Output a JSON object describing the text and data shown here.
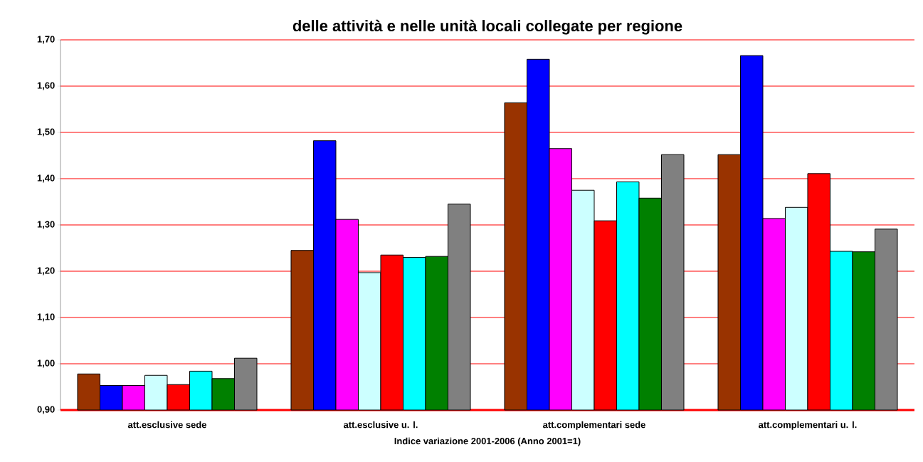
{
  "chart_data": {
    "type": "bar",
    "title": "delle attività e nelle unità locali collegate per regione",
    "xlabel": "Indice variazione 2001-2006 (Anno 2001=1)",
    "categories": [
      "att.esclusive sede",
      "att.esclusive u. l.",
      "att.complementari sede",
      "att.complementari u. l."
    ],
    "series": [
      {
        "color": "#993300",
        "values": [
          0.978,
          1.245,
          1.564,
          1.452
        ]
      },
      {
        "color": "#0000ff",
        "values": [
          0.953,
          1.482,
          1.658,
          1.666
        ]
      },
      {
        "color": "#ff00ff",
        "values": [
          0.953,
          1.312,
          1.465,
          1.314
        ]
      },
      {
        "color": "#ccffff",
        "values": [
          0.975,
          1.197,
          1.375,
          1.338
        ]
      },
      {
        "color": "#ff0000",
        "values": [
          0.955,
          1.235,
          1.309,
          1.411
        ]
      },
      {
        "color": "#00ffff",
        "values": [
          0.984,
          1.23,
          1.393,
          1.243
        ]
      },
      {
        "color": "#008000",
        "values": [
          0.968,
          1.232,
          1.358,
          1.242
        ]
      },
      {
        "color": "#808080",
        "values": [
          1.012,
          1.345,
          1.452,
          1.291
        ]
      }
    ],
    "ylim": [
      0.9,
      1.7
    ],
    "yticks": [
      {
        "value": 0.9,
        "label": "0,90"
      },
      {
        "value": 1.0,
        "label": "1,00"
      },
      {
        "value": 1.1,
        "label": "1,10"
      },
      {
        "value": 1.2,
        "label": "1,20"
      },
      {
        "value": 1.3,
        "label": "1,30"
      },
      {
        "value": 1.4,
        "label": "1,40"
      },
      {
        "value": 1.5,
        "label": "1,50"
      },
      {
        "value": 1.6,
        "label": "1,60"
      },
      {
        "value": 1.7,
        "label": "1,70"
      }
    ],
    "grid": "y"
  }
}
